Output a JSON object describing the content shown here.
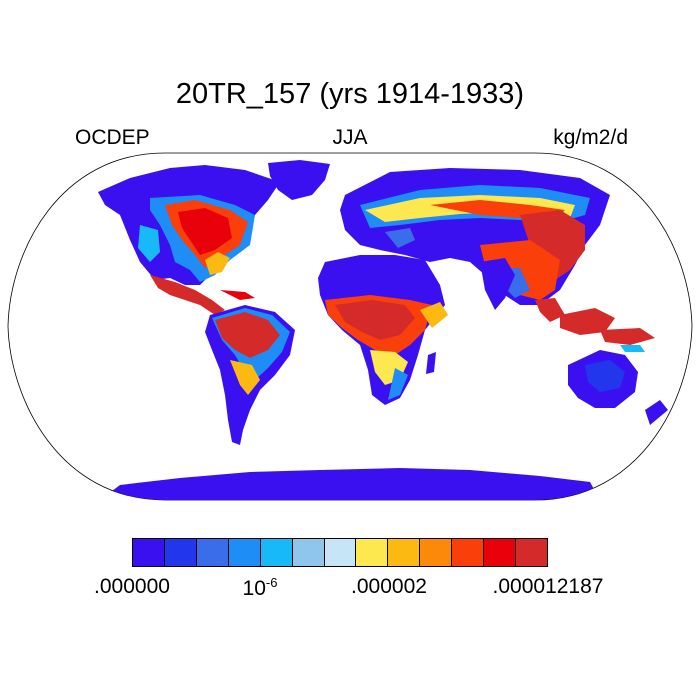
{
  "title": "20TR_157 (yrs 1914-1933)",
  "left_string": "OCDEP",
  "center_string": "JJA",
  "right_string": "kg/m2/d",
  "colorbar": {
    "colors": [
      "#3b10f0",
      "#2236ec",
      "#3a6de9",
      "#1e8df6",
      "#17b9f6",
      "#8ec6ec",
      "#c6e6f7",
      "#fde84f",
      "#fbb912",
      "#fc8a0a",
      "#fb3f0a",
      "#e8000b",
      "#d52a2a"
    ],
    "labels": [
      {
        "text": ".000000"
      },
      {
        "base": "10",
        "exp": "-6"
      },
      {
        "text": ".000002"
      },
      {
        "text": ".000012187"
      }
    ]
  },
  "map": {
    "projection": "Robinson",
    "land_no_data_color": "#ffffff",
    "ocean_color": "#ffffff"
  }
}
